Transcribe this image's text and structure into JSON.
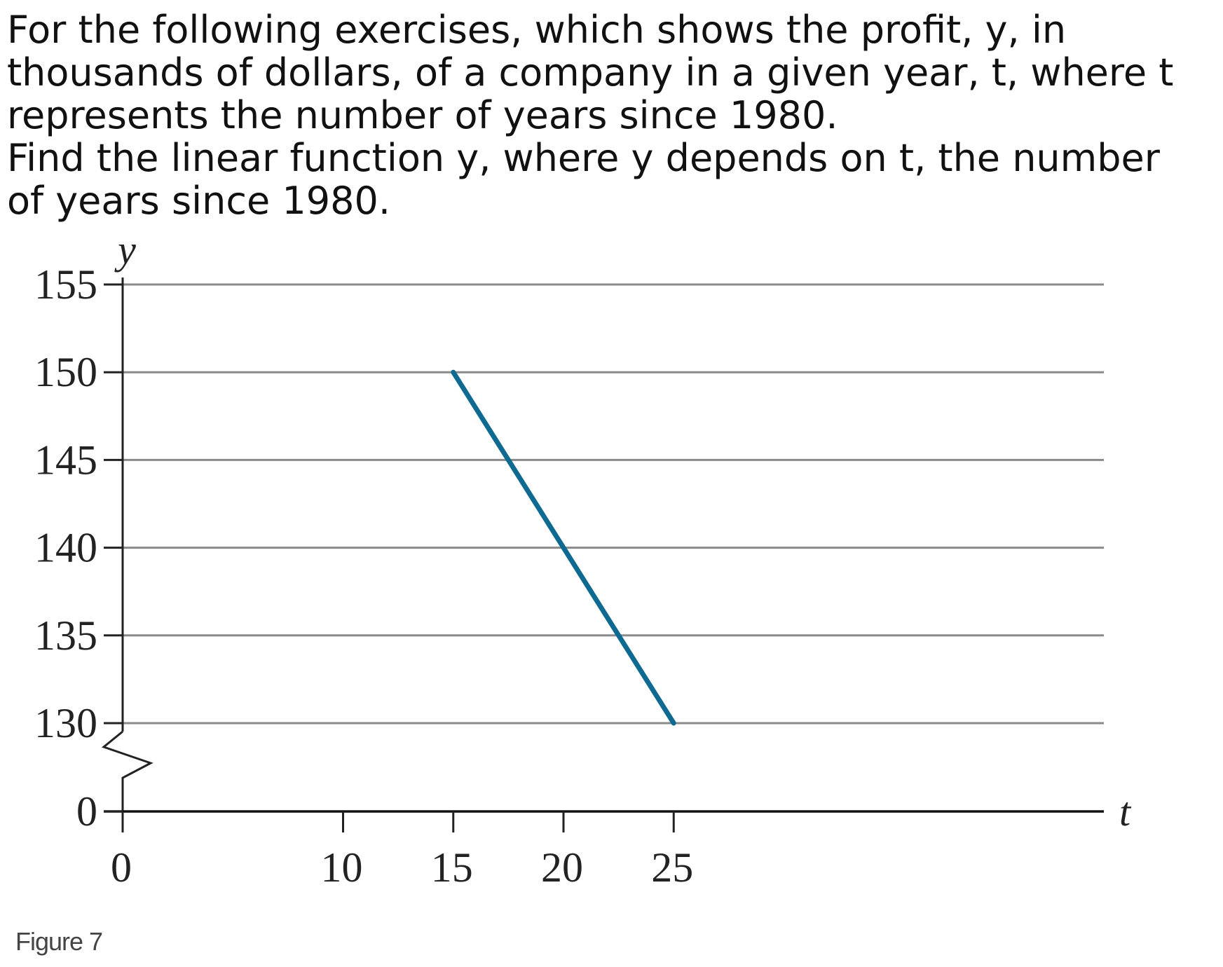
{
  "question": {
    "lines": [
      "For the following exercises, which shows the profit, y, in",
      "thousands of dollars, of a company in a given year, t, where t",
      "represents the number of years since 1980.",
      "Find the linear function  y,  where y depends on t, the number",
      "of years since 1980."
    ]
  },
  "figure_caption": "Figure 7",
  "chart_data": {
    "type": "line",
    "title": "",
    "xlabel": "t",
    "ylabel": "y",
    "x_ticks": [
      0,
      10,
      15,
      20,
      25
    ],
    "y_ticks": [
      0,
      130,
      135,
      140,
      145,
      150,
      155
    ],
    "axis_break": "y axis broken between 0 and 130",
    "xlim": [
      0,
      27
    ],
    "ylim": [
      130,
      155
    ],
    "grid": "horizontal",
    "series": [
      {
        "x": [
          15,
          25
        ],
        "y": [
          150,
          130
        ],
        "color": "#0f6a92"
      }
    ]
  }
}
